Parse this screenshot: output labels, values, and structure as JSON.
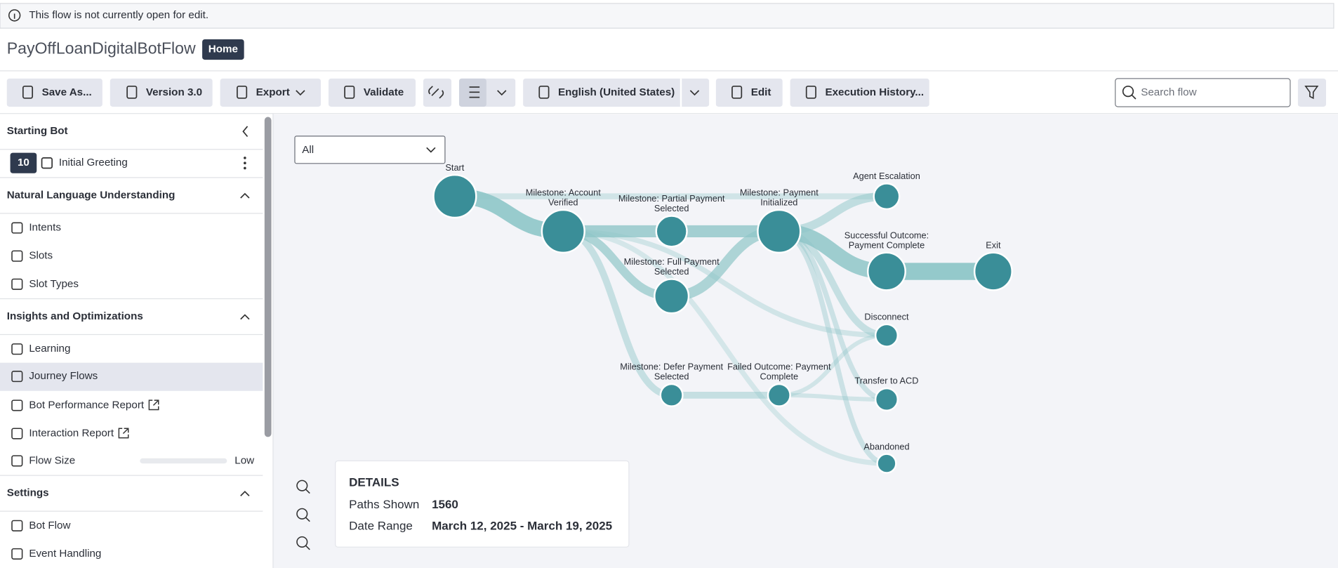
{
  "banner": {
    "text": "This flow is not currently open for edit."
  },
  "header": {
    "title": "PayOffLoanDigitalBotFlow",
    "badge": "Home"
  },
  "toolbar": {
    "buttons": [
      "Save As...",
      "Version 3.0",
      "Export",
      "Validate",
      "English (United States)",
      "Edit",
      "Execution History..."
    ],
    "search_placeholder": "Search flow"
  },
  "sidebar": {
    "starting_bot": {
      "title": "Starting Bot",
      "count": 10,
      "name": "Initial Greeting"
    },
    "sections": [
      {
        "title": "Natural Language Understanding",
        "items": [
          "Intents",
          "Slots",
          "Slot Types"
        ]
      },
      {
        "title": "Insights and Optimizations",
        "items": [
          "Learning",
          "Journey Flows",
          "Bot Performance Report",
          "Interaction Report",
          "Flow Size"
        ]
      },
      {
        "title": "Settings",
        "items": [
          "Bot Flow",
          "Event Handling"
        ]
      }
    ],
    "flow_size_level": "Low"
  },
  "filter": "All",
  "nodes": [
    {
      "label": [
        "Start"
      ]
    },
    {
      "label": [
        "Milestone: Account",
        "Verified"
      ]
    },
    {
      "label": [
        "Milestone: Partial Payment",
        "Selected"
      ]
    },
    {
      "label": [
        "Milestone: Full Payment",
        "Selected"
      ]
    },
    {
      "label": [
        "Milestone: Payment",
        "Initialized"
      ]
    },
    {
      "label": [
        "Agent Escalation"
      ]
    },
    {
      "label": [
        "Successful Outcome:",
        "Payment Complete"
      ]
    },
    {
      "label": [
        "Exit"
      ]
    },
    {
      "label": [
        "Disconnect"
      ]
    },
    {
      "label": [
        "Milestone: Defer Payment",
        "Selected"
      ]
    },
    {
      "label": [
        "Failed Outcome: Payment",
        "Complete"
      ]
    },
    {
      "label": [
        "Transfer to ACD"
      ]
    },
    {
      "label": [
        "Abandoned"
      ]
    }
  ],
  "details": {
    "title": "DETAILS",
    "rows": [
      {
        "label": "Paths Shown",
        "value": 1560
      },
      {
        "label": "Date Range",
        "value": "March 12, 2025 - March 19, 2025"
      }
    ]
  }
}
